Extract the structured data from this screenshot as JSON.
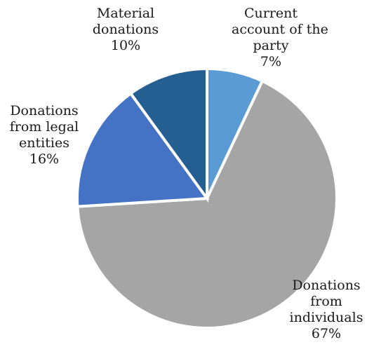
{
  "chart_data": {
    "type": "pie",
    "start_angle_deg": 0,
    "direction": "clockwise",
    "slices": [
      {
        "label_lines": [
          "Current",
          "account of the",
          "party"
        ],
        "value": 7,
        "pct_label": "7%",
        "color": "#5b9bd5"
      },
      {
        "label_lines": [
          "Donations",
          "from",
          "individuals"
        ],
        "value": 67,
        "pct_label": "67%",
        "color": "#a5a5a5"
      },
      {
        "label_lines": [
          "Donations",
          "from legal",
          "entities"
        ],
        "value": 16,
        "pct_label": "16%",
        "color": "#4472c4"
      },
      {
        "label_lines": [
          "Material",
          "donations"
        ],
        "value": 10,
        "pct_label": "10%",
        "color": "#255e91"
      }
    ]
  }
}
